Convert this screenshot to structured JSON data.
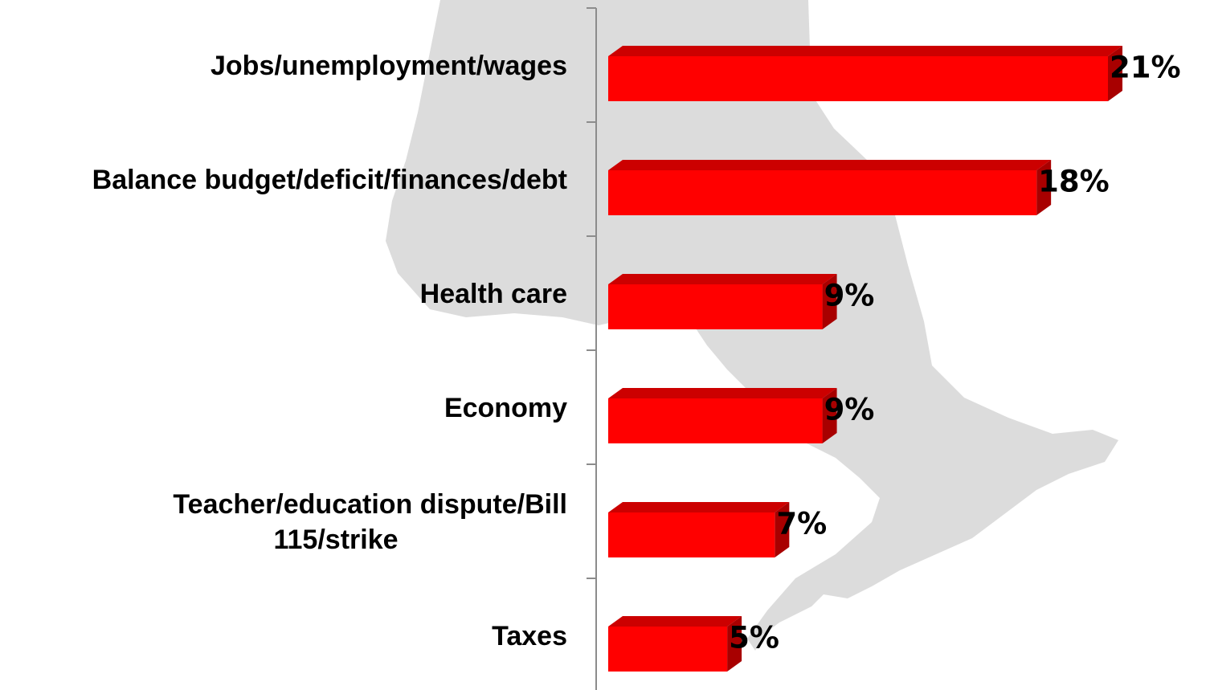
{
  "chart_data": {
    "type": "bar",
    "orientation": "horizontal",
    "style": "3d",
    "categories": [
      "Jobs/unemployment/wages",
      "Balance budget/deficit/finances/debt",
      "Health care",
      "Economy",
      "Teacher/education dispute/Bill 115/strike",
      "Taxes"
    ],
    "category_label_lines": [
      [
        "Jobs/unemployment/wages"
      ],
      [
        "Balance budget/deficit/finances/debt"
      ],
      [
        "Health care"
      ],
      [
        "Economy"
      ],
      [
        "Teacher/education dispute/Bill",
        "115/strike"
      ],
      [
        "Taxes"
      ]
    ],
    "values": [
      21,
      18,
      9,
      9,
      7,
      5
    ],
    "value_labels": [
      "21%",
      "18%",
      "9%",
      "9%",
      "7%",
      "5%"
    ],
    "unit": "%",
    "title": "",
    "xlabel": "",
    "ylabel": "",
    "xlim": [
      0,
      21
    ],
    "grid": false,
    "legend": "none",
    "background_image": "ontario-map-silhouette",
    "colors": {
      "bar_front": "#ff0000",
      "bar_top": "#cc0000",
      "bar_side": "#a80000",
      "axis": "#8c8c8c",
      "map": "#dcdcdc",
      "text": "#000000"
    }
  }
}
